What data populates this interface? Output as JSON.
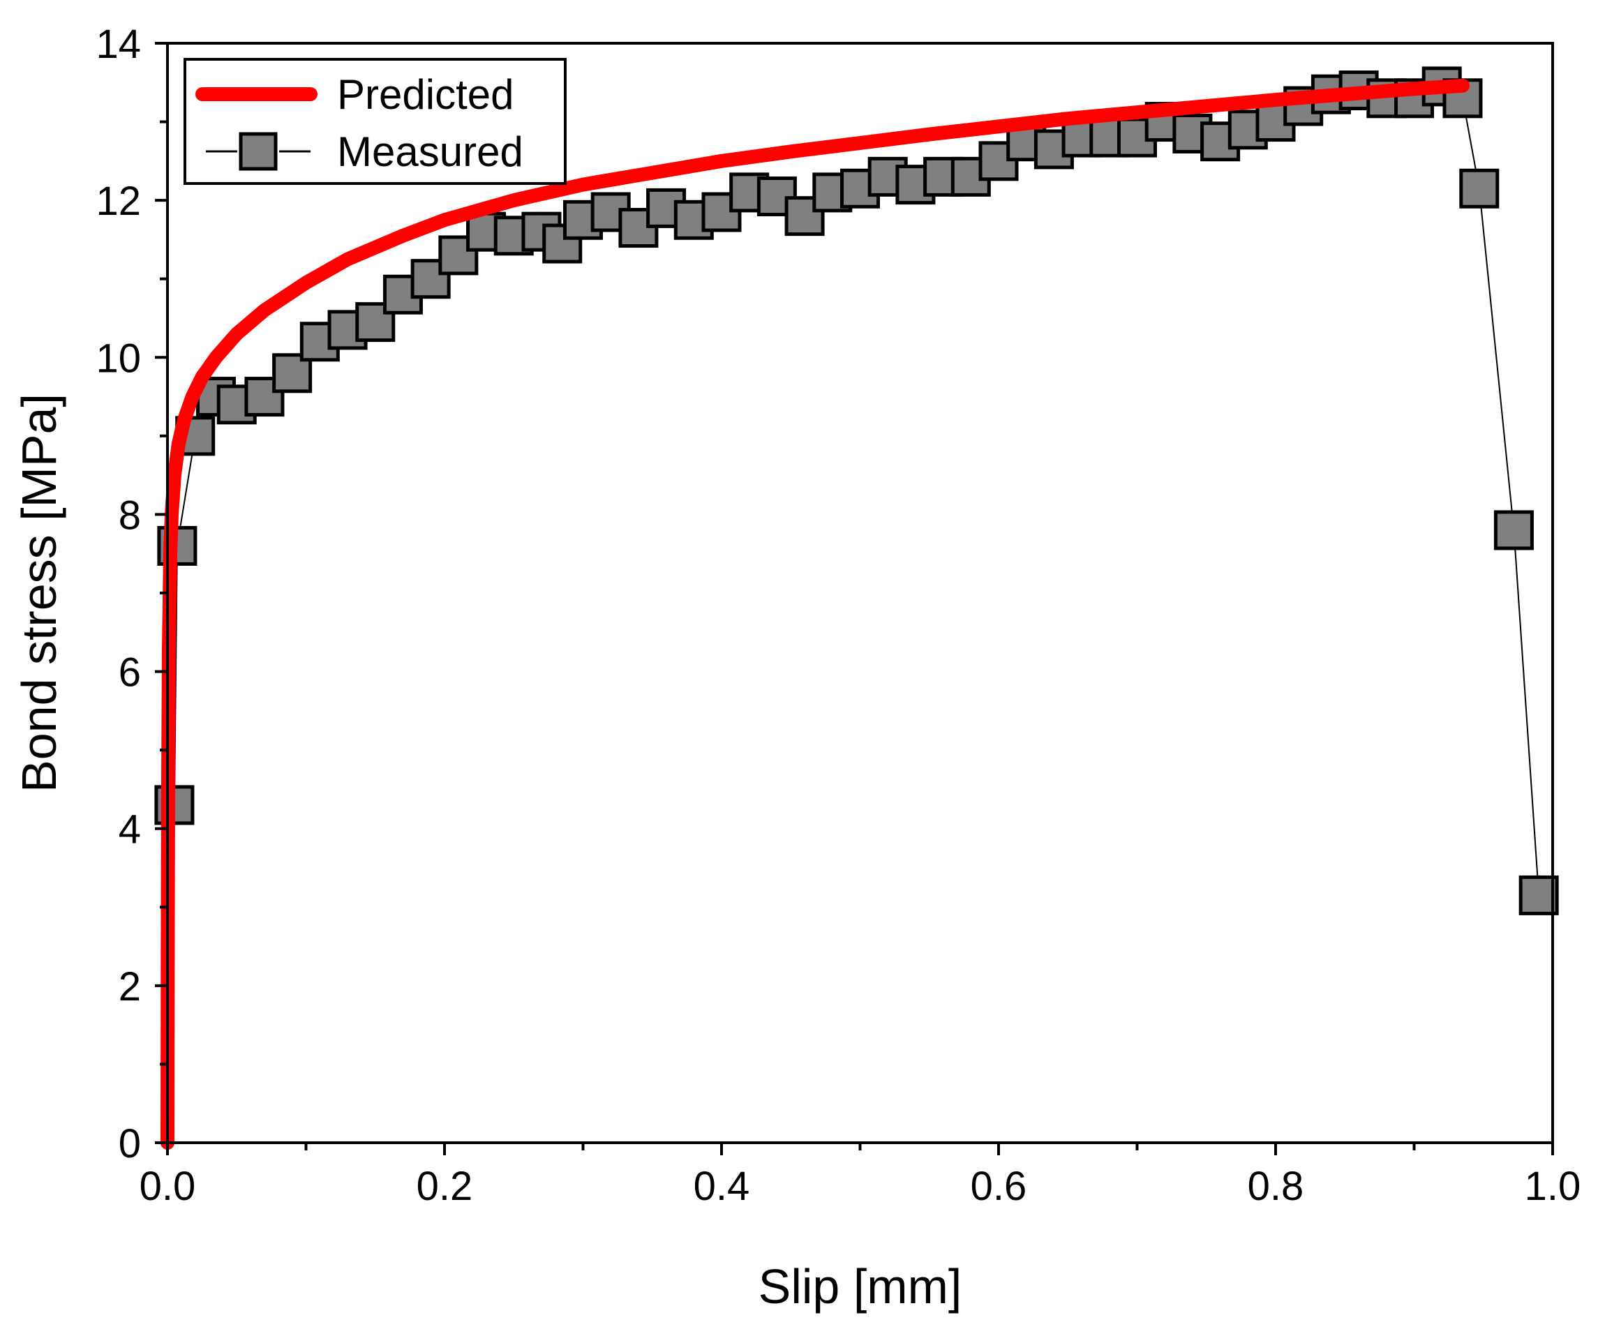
{
  "chart_data": {
    "type": "scatter",
    "title": "",
    "xlabel": "Slip [mm]",
    "ylabel": "Bond stress [MPa]",
    "xlim": [
      0.0,
      1.0
    ],
    "ylim": [
      0,
      14
    ],
    "x_ticks": [
      0.0,
      0.2,
      0.4,
      0.6,
      0.8,
      1.0
    ],
    "x_tick_labels": [
      "0.0",
      "0.2",
      "0.4",
      "0.6",
      "0.8",
      "1.0"
    ],
    "y_ticks": [
      0,
      2,
      4,
      6,
      8,
      10,
      12,
      14
    ],
    "y_tick_labels": [
      "0",
      "2",
      "4",
      "6",
      "8",
      "10",
      "12",
      "14"
    ],
    "grid": false,
    "legend_position": "top-left",
    "colors": {
      "predicted": "#ff0000",
      "measured_fill": "#808080",
      "measured_edge": "#000000"
    },
    "series": [
      {
        "name": "Predicted",
        "style": "line",
        "x": [
          0.0,
          0.0002,
          0.0005,
          0.001,
          0.002,
          0.003,
          0.005,
          0.008,
          0.012,
          0.018,
          0.025,
          0.035,
          0.05,
          0.07,
          0.1,
          0.13,
          0.17,
          0.2,
          0.25,
          0.3,
          0.35,
          0.4,
          0.45,
          0.5,
          0.55,
          0.6,
          0.65,
          0.7,
          0.75,
          0.8,
          0.85,
          0.9,
          0.935
        ],
        "y": [
          0.0,
          2.5,
          4.6,
          6.3,
          7.5,
          8.0,
          8.5,
          8.9,
          9.2,
          9.5,
          9.75,
          10.0,
          10.3,
          10.6,
          10.95,
          11.25,
          11.55,
          11.75,
          12.0,
          12.2,
          12.35,
          12.5,
          12.62,
          12.73,
          12.84,
          12.94,
          13.04,
          13.12,
          13.2,
          13.28,
          13.35,
          13.42,
          13.46
        ]
      },
      {
        "name": "Measured",
        "style": "line-marker",
        "x": [
          0.005,
          0.007,
          0.02,
          0.035,
          0.05,
          0.07,
          0.09,
          0.11,
          0.13,
          0.15,
          0.17,
          0.19,
          0.21,
          0.23,
          0.25,
          0.27,
          0.285,
          0.3,
          0.32,
          0.34,
          0.36,
          0.38,
          0.4,
          0.42,
          0.44,
          0.46,
          0.48,
          0.5,
          0.52,
          0.54,
          0.56,
          0.58,
          0.6,
          0.62,
          0.64,
          0.66,
          0.68,
          0.7,
          0.72,
          0.74,
          0.76,
          0.78,
          0.8,
          0.82,
          0.84,
          0.86,
          0.88,
          0.9,
          0.92,
          0.935,
          0.947,
          0.972,
          0.99
        ],
        "y": [
          4.3,
          7.6,
          9.0,
          9.5,
          9.4,
          9.5,
          9.8,
          10.2,
          10.35,
          10.45,
          10.8,
          11.0,
          11.3,
          11.6,
          11.55,
          11.6,
          11.45,
          11.75,
          11.85,
          11.65,
          11.9,
          11.75,
          11.85,
          12.1,
          12.05,
          11.8,
          12.1,
          12.15,
          12.3,
          12.2,
          12.3,
          12.3,
          12.5,
          12.75,
          12.65,
          12.8,
          12.8,
          12.8,
          13.0,
          12.85,
          12.75,
          12.9,
          13.0,
          13.2,
          13.35,
          13.4,
          13.3,
          13.3,
          13.45,
          13.3,
          12.15,
          7.8,
          3.15
        ]
      }
    ]
  }
}
